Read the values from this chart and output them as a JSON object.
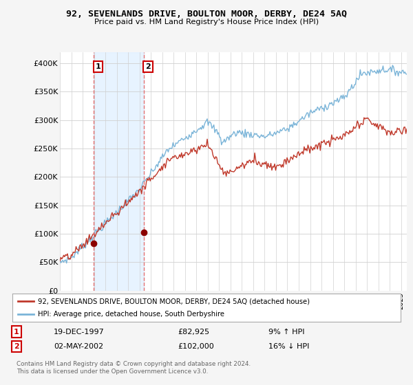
{
  "title": "92, SEVENLANDS DRIVE, BOULTON MOOR, DERBY, DE24 5AQ",
  "subtitle": "Price paid vs. HM Land Registry's House Price Index (HPI)",
  "ylim": [
    0,
    420000
  ],
  "yticks": [
    0,
    50000,
    100000,
    150000,
    200000,
    250000,
    300000,
    350000,
    400000
  ],
  "ytick_labels": [
    "£0",
    "£50K",
    "£100K",
    "£150K",
    "£200K",
    "£250K",
    "£300K",
    "£350K",
    "£400K"
  ],
  "hpi_color": "#7ab4d8",
  "price_color": "#c0392b",
  "marker_color": "#8b0000",
  "vline_color": "#e57373",
  "shade_color": "#ddeeff",
  "background_color": "#f5f5f5",
  "plot_bg_color": "#ffffff",
  "grid_color": "#d0d0d0",
  "legend_label_price": "92, SEVENLANDS DRIVE, BOULTON MOOR, DERBY, DE24 5AQ (detached house)",
  "legend_label_hpi": "HPI: Average price, detached house, South Derbyshire",
  "transaction1_date": "19-DEC-1997",
  "transaction1_price": "£82,925",
  "transaction1_hpi": "9% ↑ HPI",
  "transaction2_date": "02-MAY-2002",
  "transaction2_price": "£102,000",
  "transaction2_hpi": "16% ↓ HPI",
  "footer": "Contains HM Land Registry data © Crown copyright and database right 2024.\nThis data is licensed under the Open Government Licence v3.0.",
  "sale1_x": 1997.96,
  "sale1_y": 82925,
  "sale2_x": 2002.37,
  "sale2_y": 102000,
  "xlim_left": 1995.0,
  "xlim_right": 2025.5
}
